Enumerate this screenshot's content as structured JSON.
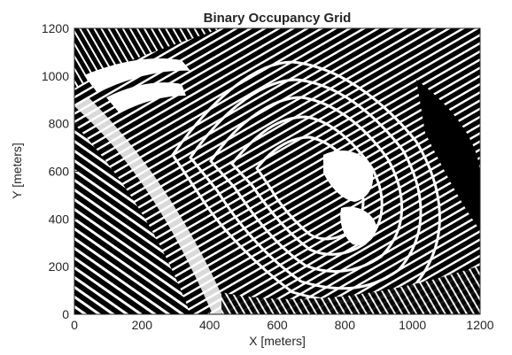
{
  "chart_data": {
    "type": "heatmap",
    "title": "Binary Occupancy Grid",
    "xlabel": "X [meters]",
    "ylabel": "Y [meters]",
    "xlim": [
      0,
      1200
    ],
    "ylim": [
      0,
      1200
    ],
    "xticks": [
      0,
      200,
      400,
      600,
      800,
      1000,
      1200
    ],
    "yticks": [
      0,
      200,
      400,
      600,
      800,
      1000,
      1200
    ],
    "grid": false,
    "colormap": {
      "occupied": "#000000",
      "free": "#ffffff"
    }
  }
}
